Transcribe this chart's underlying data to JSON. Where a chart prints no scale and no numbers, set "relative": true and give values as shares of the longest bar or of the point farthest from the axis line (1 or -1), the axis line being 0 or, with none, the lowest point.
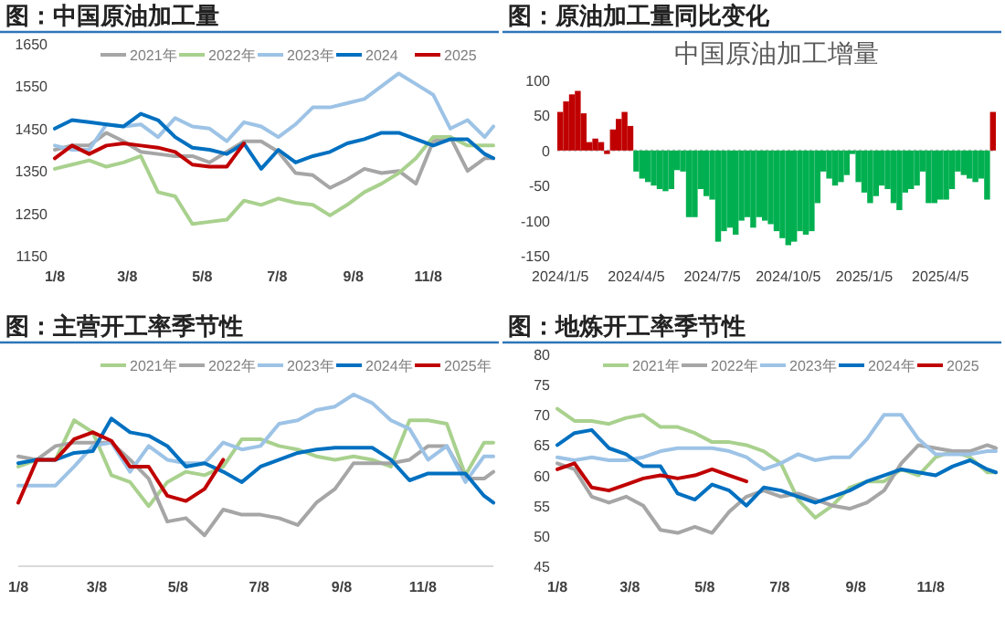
{
  "chart_data": [
    {
      "type": "line",
      "title": "图：中国原油加工量",
      "legend": "top",
      "ylim": [
        1150,
        1650
      ],
      "yticks": [
        1150,
        1250,
        1350,
        1450,
        1550,
        1650
      ],
      "x": [
        "--01-08",
        "--01-22",
        "--02-05",
        "--02-19",
        "--03-05",
        "--03-19",
        "--04-02",
        "--04-16",
        "--04-30",
        "--05-14",
        "--05-28",
        "--06-11",
        "--06-25",
        "--07-09",
        "--07-23",
        "--08-06",
        "--08-20",
        "--09-03",
        "--09-17",
        "--10-01",
        "--10-15",
        "--10-29",
        "--11-12",
        "--11-26",
        "--12-10",
        "--12-24",
        "--12-31"
      ],
      "xlim": [
        "--01-08",
        "--12-31"
      ],
      "xticks": [
        {
          "value": "--01-08",
          "label": "1/8"
        },
        {
          "value": "--03-08",
          "label": "3/8"
        },
        {
          "value": "--05-08",
          "label": "5/8"
        },
        {
          "value": "--07-08",
          "label": "7/8"
        },
        {
          "value": "--09-08",
          "label": "9/8"
        },
        {
          "value": "--11-08",
          "label": "11/8"
        }
      ],
      "series": [
        {
          "name": "2021年",
          "color": "#a6a6a6",
          "values": [
            1400,
            1410,
            1410,
            1440,
            1420,
            1395,
            1390,
            1385,
            1385,
            1370,
            1395,
            1420,
            1420,
            1395,
            1345,
            1340,
            1310,
            1330,
            1355,
            1345,
            1350,
            1320,
            1420,
            1430,
            1350,
            1380,
            1380
          ]
        },
        {
          "name": "2022年",
          "color": "#a9d18e",
          "values": [
            1355,
            1365,
            1375,
            1360,
            1370,
            1385,
            1300,
            1290,
            1225,
            1230,
            1235,
            1280,
            1270,
            1285,
            1275,
            1270,
            1245,
            1270,
            1300,
            1320,
            1345,
            1380,
            1430,
            1430,
            1410,
            1410,
            1410
          ]
        },
        {
          "name": "2023年",
          "color": "#9dc3e6",
          "values": [
            1410,
            1400,
            1400,
            1460,
            1455,
            1460,
            1430,
            1475,
            1455,
            1450,
            1420,
            1465,
            1455,
            1430,
            1460,
            1500,
            1500,
            1510,
            1520,
            1550,
            1580,
            1555,
            1530,
            1450,
            1470,
            1430,
            1455
          ]
        },
        {
          "name": "2024",
          "color": "#0070c0",
          "values": [
            1450,
            1470,
            1465,
            1460,
            1455,
            1485,
            1470,
            1430,
            1405,
            1400,
            1390,
            1415,
            1355,
            1400,
            1370,
            1385,
            1395,
            1415,
            1425,
            1440,
            1440,
            1425,
            1410,
            1425,
            1425,
            1390,
            1380
          ]
        },
        {
          "name": "2025",
          "color": "#c00000",
          "values": [
            1380,
            1410,
            1390,
            1410,
            1415,
            1410,
            1405,
            1395,
            1365,
            1360,
            1360,
            1415,
            null,
            null,
            null,
            null,
            null,
            null,
            null,
            null,
            null,
            null,
            null,
            null,
            null,
            null,
            null
          ]
        }
      ]
    },
    {
      "type": "bar",
      "title": "图：原油加工量同比变化",
      "subtitle": "中国原油加工增量",
      "ylim": [
        -150,
        100
      ],
      "yticks": [
        -150,
        -100,
        -50,
        0,
        50,
        100
      ],
      "categories": [
        "2024/1/5",
        null,
        null,
        null,
        null,
        null,
        null,
        null,
        null,
        null,
        null,
        null,
        null,
        "2024/4/5",
        null,
        null,
        null,
        null,
        null,
        null,
        null,
        null,
        null,
        null,
        null,
        null,
        "2024/7/5",
        null,
        null,
        null,
        null,
        null,
        null,
        null,
        null,
        null,
        null,
        null,
        null,
        "2024/10/5",
        null,
        null,
        null,
        null,
        null,
        null,
        null,
        null,
        null,
        null,
        null,
        null,
        "2025/1/5",
        null,
        null,
        null,
        null,
        null,
        null,
        null,
        null,
        null,
        null,
        null,
        null,
        "2025/4/5",
        null,
        null,
        null,
        null,
        null,
        null,
        null,
        null,
        null
      ],
      "values": [
        55,
        70,
        80,
        85,
        53,
        12,
        17,
        12,
        -5,
        30,
        45,
        55,
        35,
        -30,
        -40,
        -45,
        -50,
        -55,
        -58,
        -55,
        -28,
        -30,
        -95,
        -95,
        -55,
        -65,
        -70,
        -130,
        -115,
        -110,
        -120,
        -100,
        -95,
        -110,
        -95,
        -100,
        -105,
        -115,
        -125,
        -135,
        -130,
        -115,
        -120,
        -115,
        -75,
        -30,
        -40,
        -50,
        -45,
        -35,
        -5,
        -45,
        -60,
        -75,
        -65,
        -50,
        -55,
        -75,
        -85,
        -60,
        -55,
        -50,
        -30,
        -75,
        -75,
        -70,
        -70,
        -55,
        -30,
        -35,
        -40,
        -45,
        -40,
        -70,
        55
      ],
      "colors": [
        "#c00000",
        "#c00000",
        "#c00000",
        "#c00000",
        "#c00000",
        "#c00000",
        "#c00000",
        "#c00000",
        "#c00000",
        "#c00000",
        "#c00000",
        "#c00000",
        "#c00000",
        "#00b050",
        "#00b050",
        "#00b050",
        "#00b050",
        "#00b050",
        "#00b050",
        "#00b050",
        "#00b050",
        "#00b050",
        "#00b050",
        "#00b050",
        "#00b050",
        "#00b050",
        "#00b050",
        "#00b050",
        "#00b050",
        "#00b050",
        "#00b050",
        "#00b050",
        "#00b050",
        "#00b050",
        "#00b050",
        "#00b050",
        "#00b050",
        "#00b050",
        "#00b050",
        "#00b050",
        "#00b050",
        "#00b050",
        "#00b050",
        "#00b050",
        "#00b050",
        "#00b050",
        "#00b050",
        "#00b050",
        "#00b050",
        "#00b050",
        "#00b050",
        "#00b050",
        "#00b050",
        "#00b050",
        "#00b050",
        "#00b050",
        "#00b050",
        "#00b050",
        "#00b050",
        "#00b050",
        "#00b050",
        "#00b050",
        "#00b050",
        "#00b050",
        "#00b050",
        "#00b050",
        "#00b050",
        "#00b050",
        "#00b050",
        "#00b050",
        "#00b050",
        "#00b050",
        "#00b050",
        "#00b050",
        "#c00000"
      ]
    },
    {
      "type": "line",
      "title": "图：主营开工率季节性",
      "legend": "top",
      "relative": true,
      "x": [
        "--01-08",
        "--01-22",
        "--02-05",
        "--02-19",
        "--03-05",
        "--03-19",
        "--04-02",
        "--04-16",
        "--04-30",
        "--05-14",
        "--05-28",
        "--06-11",
        "--06-25",
        "--07-09",
        "--07-23",
        "--08-06",
        "--08-20",
        "--09-03",
        "--09-17",
        "--10-01",
        "--10-15",
        "--10-29",
        "--11-12",
        "--11-26",
        "--12-10",
        "--12-24",
        "--12-31"
      ],
      "xlim": [
        "--01-08",
        "--12-31"
      ],
      "xticks": [
        {
          "value": "--01-08",
          "label": "1/8"
        },
        {
          "value": "--03-08",
          "label": "3/8"
        },
        {
          "value": "--05-08",
          "label": "5/8"
        },
        {
          "value": "--07-08",
          "label": "7/8"
        },
        {
          "value": "--09-08",
          "label": "9/8"
        },
        {
          "value": "--11-08",
          "label": "11/8"
        }
      ],
      "series": [
        {
          "name": "2021年",
          "color": "#a9d18e",
          "values": [
            0.58,
            0.62,
            0.62,
            0.85,
            0.78,
            0.53,
            0.49,
            0.35,
            0.49,
            0.55,
            0.53,
            0.58,
            0.74,
            0.74,
            0.7,
            0.68,
            0.64,
            0.62,
            0.64,
            0.62,
            0.58,
            0.85,
            0.85,
            0.83,
            0.53,
            0.72,
            0.72
          ]
        },
        {
          "name": "2022年",
          "color": "#a6a6a6",
          "values": [
            0.64,
            0.62,
            0.7,
            0.72,
            0.72,
            0.72,
            0.62,
            0.51,
            0.26,
            0.28,
            0.18,
            0.33,
            0.3,
            0.3,
            0.28,
            0.24,
            0.37,
            0.45,
            0.6,
            0.6,
            0.6,
            0.62,
            0.7,
            0.7,
            0.51,
            0.51,
            0.55
          ]
        },
        {
          "name": "2023年",
          "color": "#9dc3e6",
          "values": [
            0.47,
            0.47,
            0.47,
            0.58,
            0.7,
            0.72,
            0.55,
            0.7,
            0.62,
            0.6,
            0.6,
            0.72,
            0.68,
            0.7,
            0.83,
            0.85,
            0.91,
            0.93,
            1,
            0.95,
            0.85,
            0.8,
            0.62,
            0.7,
            0.49,
            0.64,
            0.64
          ]
        },
        {
          "name": "2024年",
          "color": "#0070c0",
          "values": [
            0.6,
            0.62,
            0.62,
            0.66,
            0.67,
            0.86,
            0.78,
            0.76,
            0.7,
            0.58,
            0.6,
            0.55,
            0.49,
            0.58,
            0.62,
            0.66,
            0.68,
            0.69,
            0.69,
            0.69,
            0.62,
            0.5,
            0.54,
            0.54,
            0.54,
            0.41,
            0.37
          ]
        },
        {
          "name": "2025年",
          "color": "#c00000",
          "values": [
            0.37,
            0.62,
            0.62,
            0.74,
            0.78,
            0.73,
            0.58,
            0.58,
            0.41,
            0.38,
            0.45,
            0.62,
            null,
            null,
            null,
            null,
            null,
            null,
            null,
            null,
            null,
            null,
            null,
            null,
            null,
            null,
            null
          ]
        }
      ]
    },
    {
      "type": "line",
      "title": "图：地炼开工率季节性",
      "legend": "top",
      "ylim": [
        45,
        80
      ],
      "yticks": [
        45,
        50,
        55,
        60,
        65,
        70,
        75,
        80
      ],
      "x": [
        "--01-08",
        "--01-22",
        "--02-05",
        "--02-19",
        "--03-05",
        "--03-19",
        "--04-02",
        "--04-16",
        "--04-30",
        "--05-14",
        "--05-28",
        "--06-11",
        "--06-25",
        "--07-09",
        "--07-23",
        "--08-06",
        "--08-20",
        "--09-03",
        "--09-17",
        "--10-01",
        "--10-15",
        "--10-29",
        "--11-12",
        "--11-26",
        "--12-10",
        "--12-24",
        "--12-31"
      ],
      "xlim": [
        "--01-08",
        "--12-31"
      ],
      "xticks": [
        {
          "value": "--01-08",
          "label": "1/8"
        },
        {
          "value": "--03-08",
          "label": "3/8"
        },
        {
          "value": "--05-08",
          "label": "5/8"
        },
        {
          "value": "--07-08",
          "label": "7/8"
        },
        {
          "value": "--09-08",
          "label": "9/8"
        },
        {
          "value": "--11-08",
          "label": "11/8"
        }
      ],
      "series": [
        {
          "name": "2021年",
          "color": "#a9d18e",
          "values": [
            71,
            69,
            69,
            68.5,
            69.5,
            70,
            68,
            68,
            67,
            65.5,
            65.5,
            65,
            64,
            62,
            56,
            53,
            55,
            58,
            59,
            59,
            61,
            60,
            63,
            64,
            63,
            60.5,
            60.5
          ]
        },
        {
          "name": "2022年",
          "color": "#a6a6a6",
          "values": [
            62,
            61,
            56.5,
            55.5,
            56.5,
            55,
            51,
            50.5,
            51.5,
            50.5,
            54,
            56.5,
            57.5,
            56.5,
            57,
            56,
            55,
            54.5,
            55.5,
            57.5,
            62,
            65,
            64.5,
            64,
            64,
            65,
            64.5
          ]
        },
        {
          "name": "2023年",
          "color": "#9dc3e6",
          "values": [
            63,
            62.5,
            63,
            62.5,
            62.5,
            63,
            64,
            64.5,
            64.5,
            64.5,
            64,
            63,
            61,
            62,
            63.5,
            62.5,
            63,
            63,
            66,
            70,
            70,
            66,
            63.5,
            63.5,
            63.5,
            64,
            64
          ]
        },
        {
          "name": "2024年",
          "color": "#0070c0",
          "values": [
            65,
            67,
            67.5,
            64.5,
            63.5,
            61.5,
            61.5,
            57,
            56,
            58.5,
            57.5,
            55,
            58,
            57.5,
            56.5,
            55.5,
            56.5,
            57.5,
            59,
            60,
            61,
            60.5,
            60,
            61.5,
            62.5,
            61,
            60.5
          ]
        },
        {
          "name": "2025",
          "color": "#c00000",
          "values": [
            61,
            62,
            58,
            57.5,
            58.5,
            59.5,
            60,
            59.5,
            60,
            61,
            60,
            59,
            null,
            null,
            null,
            null,
            null,
            null,
            null,
            null,
            null,
            null,
            null,
            null,
            null,
            null,
            null
          ]
        }
      ]
    }
  ]
}
